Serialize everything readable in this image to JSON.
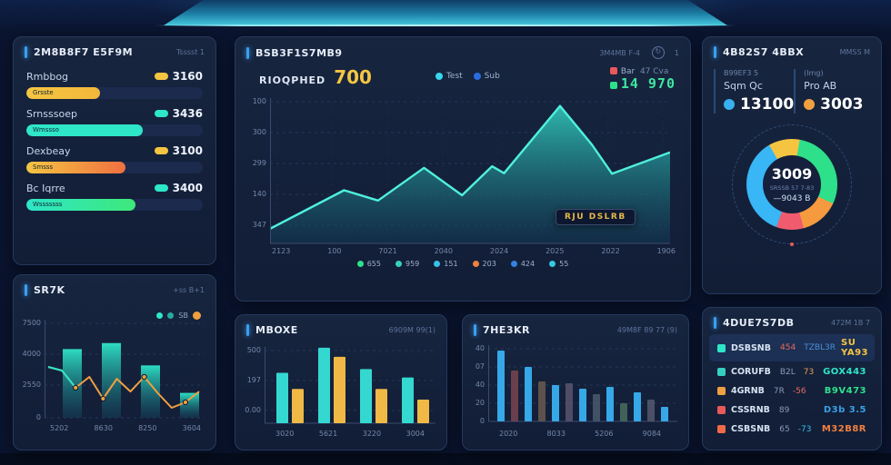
{
  "colors": {
    "accent_blue": "#3b9ff0",
    "teal": "#2ee6c8",
    "yellow": "#f5c542",
    "orange": "#f0a040",
    "red": "#e85a5a",
    "green": "#2ee08a",
    "blue": "#38b0f0",
    "panel_bg": "#14203c"
  },
  "panel_ranking": {
    "title": "2M8B8F7 E5F9M",
    "header_right": "Tsssst 1",
    "rows": [
      {
        "label": "Rmbbog",
        "value": "3160",
        "dot": "#f5c542",
        "pct": 42,
        "c1": "#f5c542",
        "c2": "#f2b83a",
        "bar_text": "Grsste"
      },
      {
        "label": "Srnsssoep",
        "value": "3436",
        "dot": "#2ee6c8",
        "pct": 66,
        "c1": "#2ee6c8",
        "c2": "#2ee6c8",
        "bar_text": "Wmssso"
      },
      {
        "label": "Dexbeay",
        "value": "3100",
        "dot": "#f5c542",
        "pct": 56,
        "c1": "#f5c542",
        "c2": "#f07040",
        "bar_text": "Smsss"
      },
      {
        "label": "Bc Iqrre",
        "value": "3400",
        "dot": "#2ee6c8",
        "pct": 62,
        "c1": "#2ee6c8",
        "c2": "#3ee87a",
        "bar_text": "Wsssssss"
      }
    ]
  },
  "panel_main": {
    "title": "BSB3F1S7MB9",
    "header_right": "3M4MB F-4",
    "header_badge": "1",
    "stat_label": "RIOQPHED",
    "stat_value": "700",
    "legend": [
      {
        "c": "#38d6f0",
        "t": "Test"
      },
      {
        "c": "#2a6de0",
        "t": "Sub"
      }
    ],
    "legend2_red": "Bar",
    "legend2_mid": "47 Cva",
    "legend2_green": "14 970",
    "tooltip": "RJU DSLRB",
    "bottom_legend": [
      {
        "c": "#2ee08a",
        "t": "655"
      },
      {
        "c": "#35d0c0",
        "t": "959"
      },
      {
        "c": "#38c0e8",
        "t": "151"
      },
      {
        "c": "#f08040",
        "t": "203"
      },
      {
        "c": "#3580e0",
        "t": "424"
      },
      {
        "c": "#38c8e0",
        "t": "55"
      }
    ]
  },
  "panel_donut": {
    "title": "4B82S7 4BBX",
    "header_right": "MMSS M",
    "stats": [
      {
        "small": "B99EF3 5",
        "label": "Sqm Qc",
        "value": "13100",
        "dot": "#38b0f0"
      },
      {
        "small": "(Img)",
        "label": "Pro AB",
        "value": "3003",
        "dot": "#f0a040"
      }
    ],
    "center_value": "3009",
    "center_sub": "SRSSB 57 7-83",
    "center_sub2": "—9043 B"
  },
  "panel_combo": {
    "title": "SR7K",
    "header_right": "+ss B+1",
    "legend_label": "SB"
  },
  "panel_grouped": {
    "title": "MBOXE",
    "header_right": "6909M 99(1)"
  },
  "panel_desc": {
    "title": "7HE3KR",
    "header_right": "49M8F 89 77 (9)"
  },
  "panel_table": {
    "title": "4DUE7S7DB",
    "header_right": "472M 1B 7",
    "rows": [
      {
        "dot": "#2ee6c8",
        "label": "DSBSNB",
        "mid": "454",
        "mc": "#e86a5a",
        "mid2": "TZBL3R",
        "m2c": "#4a90d8",
        "value": "SU YA93",
        "vc": "#f5c542",
        "hl": true
      },
      {
        "dot": "#35d0c0",
        "label": "CORUFB",
        "mid": "B2L",
        "mc": "#8b9bb8",
        "mid2": "73",
        "m2c": "#e8a05a",
        "value": "GOX443",
        "vc": "#2ee6c8",
        "hl": false
      },
      {
        "dot": "#f0a040",
        "label": "4GRNB",
        "mid": "7R",
        "mc": "#8b9bb8",
        "mid2": "-56",
        "m2c": "#e86a5a",
        "value": "B9V473",
        "vc": "#2ee08a",
        "hl": false
      },
      {
        "dot": "#e85a5a",
        "label": "CSSRNB",
        "mid": "89",
        "mc": "#8b9bb8",
        "mid2": "",
        "m2c": "#8b9bb8",
        "value": "D3b 3.5",
        "vc": "#38a0e8",
        "hl": false
      },
      {
        "dot": "#f06a4a",
        "label": "CSBSNB",
        "mid": "65",
        "mc": "#8b9bb8",
        "mid2": "-73",
        "m2c": "#38c0e8",
        "value": "M32B8R",
        "vc": "#f08040",
        "hl": false
      }
    ]
  },
  "chart_data": [
    {
      "id": "main-area",
      "type": "area",
      "title": "RIOQPHED 700",
      "ylim": [
        0,
        450
      ],
      "y_ticks": [
        "100",
        "300",
        "299",
        "140",
        "347"
      ],
      "x_ticks": [
        "2123",
        "100",
        "7021",
        "2040",
        "2024",
        "2025",
        "2022",
        "1906"
      ],
      "points": [
        [
          0,
          47
        ],
        [
          0.185,
          171
        ],
        [
          0.27,
          138
        ],
        [
          0.385,
          243
        ],
        [
          0.48,
          155
        ],
        [
          0.555,
          248
        ],
        [
          0.585,
          226
        ],
        [
          0.725,
          442
        ],
        [
          0.805,
          317
        ],
        [
          0.855,
          224
        ],
        [
          1,
          293
        ]
      ],
      "line_color": "#4ff0dc",
      "fill_top": "#2fbfb4",
      "fill_bottom": "#123a55",
      "grid": true
    },
    {
      "id": "combo",
      "type": "bar+line",
      "ylim": [
        0,
        5500
      ],
      "y_ticks": [
        "7500",
        "4000",
        "2550",
        "0"
      ],
      "x_ticks": [
        "5202",
        "8630",
        "8250",
        "3604"
      ],
      "bars": [
        4000,
        4350,
        3050,
        1450
      ],
      "line": [
        2960,
        2750,
        1750,
        2380,
        1110,
        2270,
        1530,
        2380,
        1430,
        580,
        900,
        1530
      ],
      "bar_color_top": "#2ee6c8",
      "bar_color_bottom": "#15506b",
      "line_color": "#f0a040",
      "line2_color": "#2ee6c8"
    },
    {
      "id": "grouped",
      "type": "bar",
      "ylim": [
        0,
        500
      ],
      "y_ticks": [
        "500",
        "197",
        "0.00"
      ],
      "x_ticks": [
        "3020",
        "5621",
        "3220",
        "3004"
      ],
      "series": [
        {
          "name": "teal",
          "color": "#35d8d0",
          "values": [
            330,
            495,
            355,
            300
          ]
        },
        {
          "name": "yellow",
          "color": "#f0b844",
          "values": [
            225,
            435,
            225,
            155
          ]
        }
      ]
    },
    {
      "id": "desc",
      "type": "bar",
      "ylim": [
        0,
        80
      ],
      "y_ticks": [
        "40",
        "07",
        "40",
        "20",
        "0"
      ],
      "x_ticks": [
        "2020",
        "8033",
        "5206",
        "9084"
      ],
      "bars": [
        {
          "v": 78,
          "c": "#38b0f0"
        },
        {
          "v": 56,
          "c": "#7a4450"
        },
        {
          "v": 60,
          "c": "#38b0f0"
        },
        {
          "v": 44,
          "c": "#6b5a50"
        },
        {
          "v": 40,
          "c": "#38b0f0"
        },
        {
          "v": 42,
          "c": "#5a5570"
        },
        {
          "v": 36,
          "c": "#38b0f0"
        },
        {
          "v": 30,
          "c": "#4a5a6e"
        },
        {
          "v": 38,
          "c": "#38b0f0"
        },
        {
          "v": 20,
          "c": "#4a6e5e"
        },
        {
          "v": 32,
          "c": "#38b0f0"
        },
        {
          "v": 24,
          "c": "#555a70"
        },
        {
          "v": 16,
          "c": "#38b0f0"
        }
      ]
    },
    {
      "id": "donut",
      "type": "pie",
      "start_deg": -30,
      "segments": [
        {
          "c": "#f5c542",
          "deg": 40
        },
        {
          "c": "#2ee08a",
          "deg": 105
        },
        {
          "c": "#f59a3e",
          "deg": 50
        },
        {
          "c": "#f05c6e",
          "deg": 35
        },
        {
          "c": "#38b6f5",
          "deg": 130
        }
      ]
    }
  ]
}
